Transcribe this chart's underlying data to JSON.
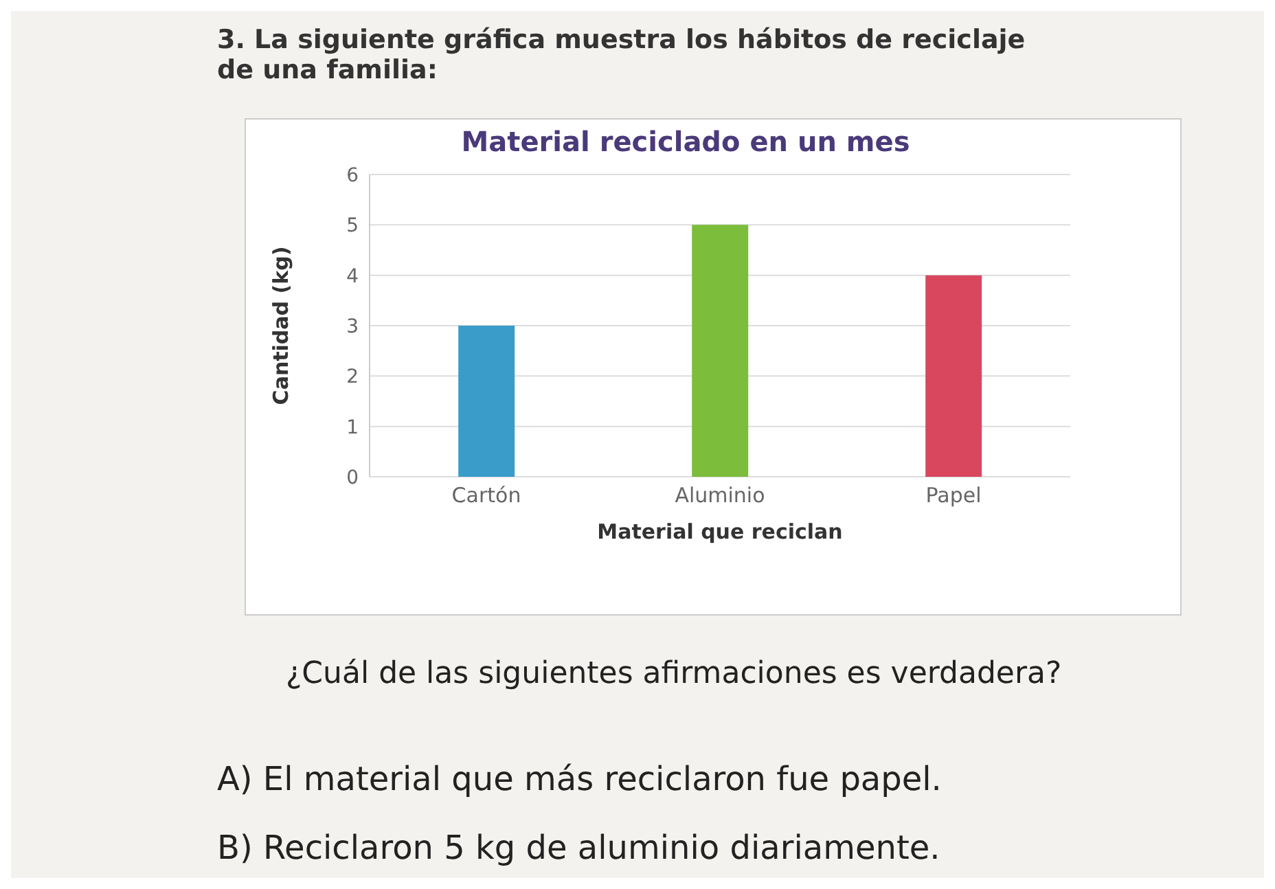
{
  "chart_data": {
    "type": "bar",
    "title": "Material reciclado en un mes",
    "xlabel": "Material que reciclan",
    "ylabel": "Cantidad (kg)",
    "categories": [
      "Cartón",
      "Aluminio",
      "Papel"
    ],
    "values": [
      3,
      5,
      4
    ],
    "colors": [
      "#3a9cc8",
      "#7dbd3c",
      "#d8475e"
    ],
    "ylim": [
      0,
      6
    ],
    "yticks": [
      0,
      1,
      2,
      3,
      4,
      5,
      6
    ],
    "grid": "y",
    "annotations": [
      "3. La siguiente gráfica muestra los hábitos de reciclaje de una familia:",
      "¿Cuál de las siguientes afirmaciones es verdadera?",
      "A) El material que más reciclaron fue papel.",
      "B) Reciclaron 5 kg de aluminio diariamente."
    ]
  }
}
